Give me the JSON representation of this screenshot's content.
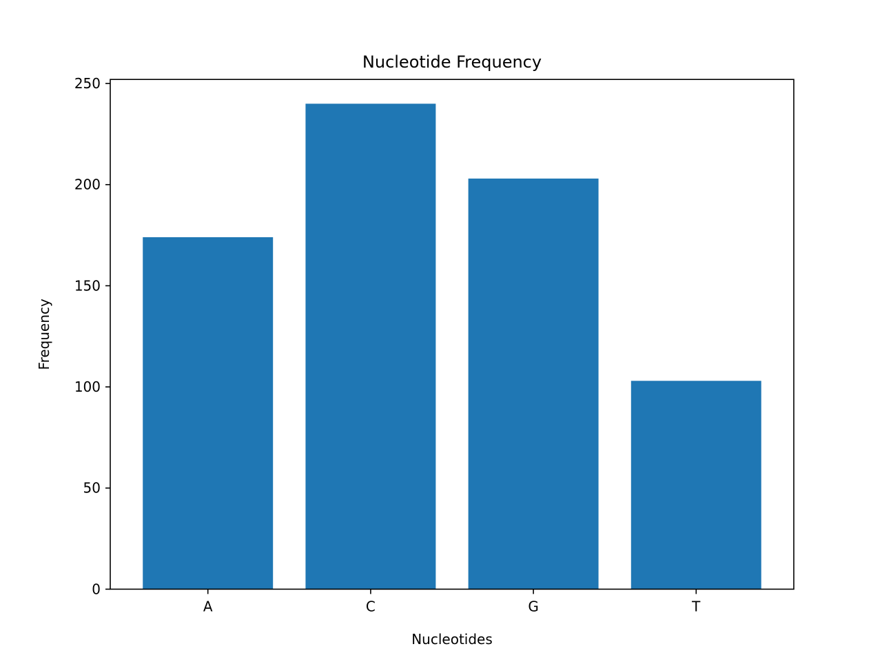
{
  "chart_data": {
    "type": "bar",
    "title": "Nucleotide Frequency",
    "xlabel": "Nucleotides",
    "ylabel": "Frequency",
    "categories": [
      "A",
      "C",
      "G",
      "T"
    ],
    "values": [
      174,
      240,
      203,
      103
    ],
    "ylim": [
      0,
      252
    ],
    "yticks": [
      0,
      50,
      100,
      150,
      200,
      250
    ],
    "bar_color": "#1f77b4",
    "grid": false,
    "legend": "none"
  }
}
